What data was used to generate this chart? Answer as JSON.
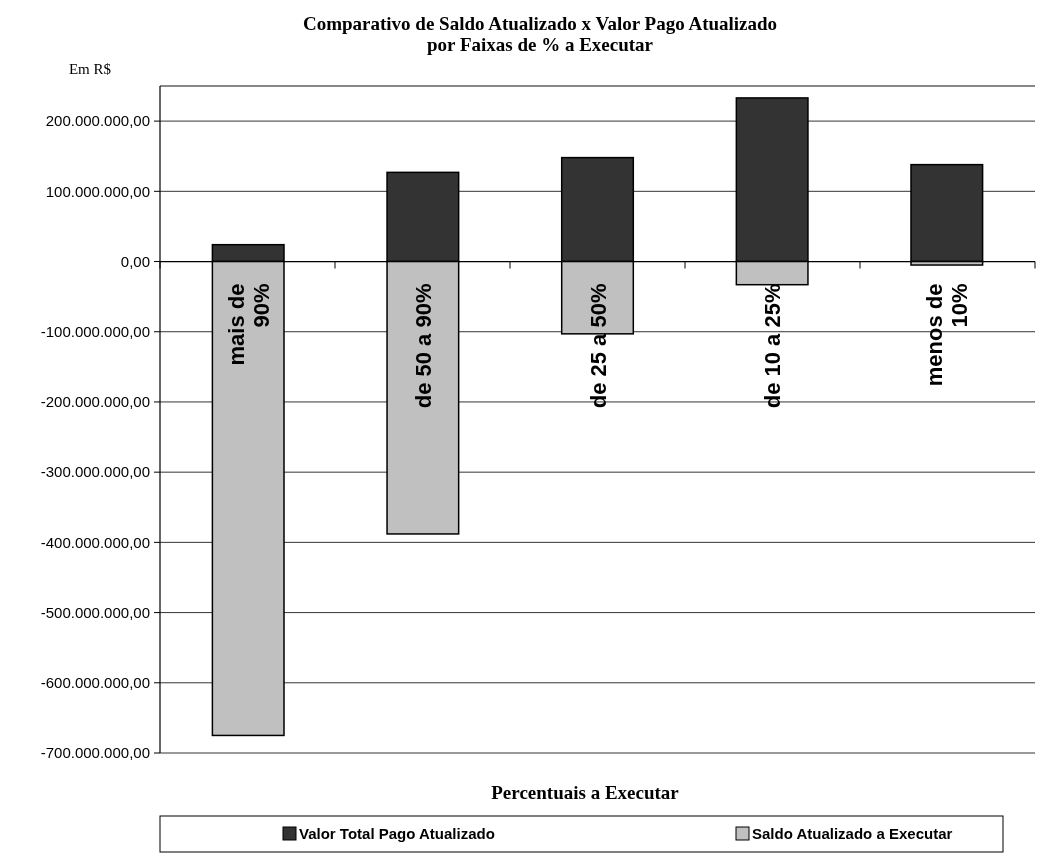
{
  "chart_data": {
    "type": "bar",
    "title": "Comparativo de Saldo Atualizado x Valor Pago Atualizado\npor Faixas de % a Executar",
    "ylabel": "Em R$",
    "xlabel": "Percentuais a Executar",
    "categories": [
      "mais de 90%",
      "de 50 a 90%",
      "de 25 a 50%",
      "de 10 a 25%",
      "menos de 10%"
    ],
    "series": [
      {
        "name": "Valor Total Pago Atualizado",
        "color": "#333333",
        "values": [
          24000000,
          127000000,
          148000000,
          233000000,
          138000000
        ]
      },
      {
        "name": "Saldo Atualizado a Executar",
        "color": "#c0c0c0",
        "values": [
          -675000000,
          -388000000,
          -103000000,
          -33000000,
          -5000000
        ]
      }
    ],
    "ylim": [
      -700000000,
      250000000
    ],
    "yticks": [
      {
        "value": -700000000,
        "label": "-700.000.000,00"
      },
      {
        "value": -600000000,
        "label": "-600.000.000,00"
      },
      {
        "value": -500000000,
        "label": "-500.000.000,00"
      },
      {
        "value": -400000000,
        "label": "-400.000.000,00"
      },
      {
        "value": -300000000,
        "label": "-300.000.000,00"
      },
      {
        "value": -200000000,
        "label": "-200.000.000,00"
      },
      {
        "value": -100000000,
        "label": "-100.000.000,00"
      },
      {
        "value": 0,
        "label": "0,00"
      },
      {
        "value": 100000000,
        "label": "100.000.000,00"
      },
      {
        "value": 200000000,
        "label": "200.000.000,00"
      }
    ],
    "stacked": true,
    "grid": "y",
    "legend": "bottom"
  }
}
